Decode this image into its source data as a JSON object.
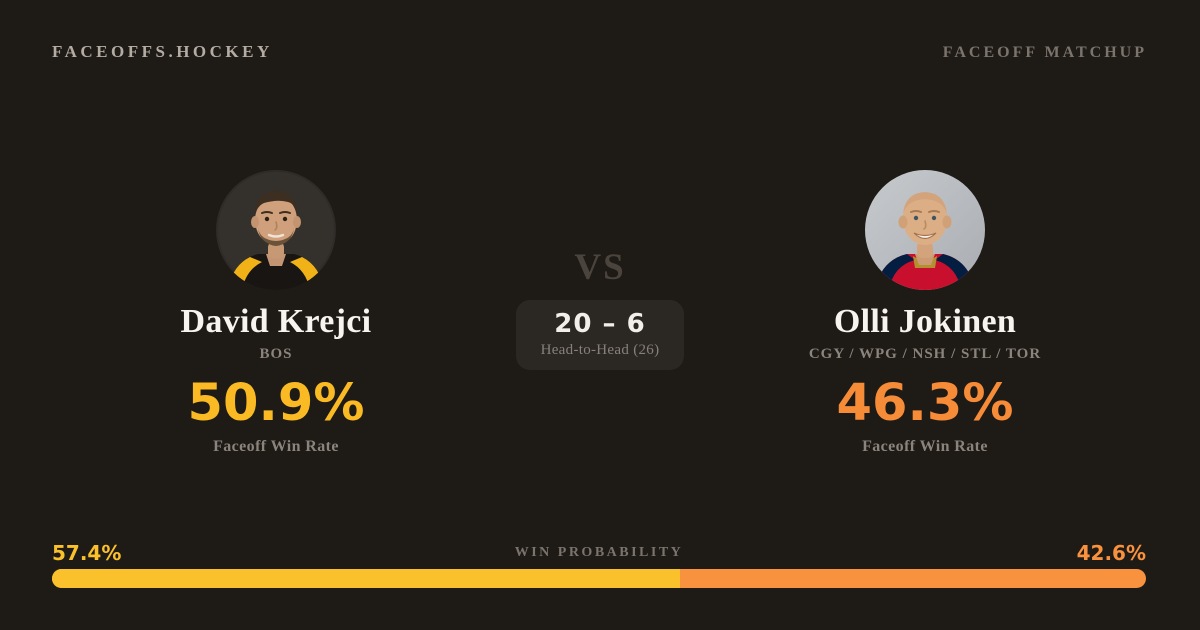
{
  "header": {
    "brand": "FACEOFFS.HOCKEY",
    "label": "FACEOFF MATCHUP"
  },
  "players": {
    "left": {
      "name": "David Krejci",
      "teams": "BOS",
      "win_rate": "50.9%",
      "win_rate_label": "Faceoff Win Rate",
      "accent_color": "#f9ba24",
      "avatar": "david-krejci-portrait-photo"
    },
    "right": {
      "name": "Olli Jokinen",
      "teams": "CGY / WPG / NSH / STL / TOR",
      "win_rate": "46.3%",
      "win_rate_label": "Faceoff Win Rate",
      "accent_color": "#f68b38",
      "avatar": "olli-jokinen-portrait-photo"
    }
  },
  "center": {
    "vs": "VS",
    "score": "20 – 6",
    "label": "Head-to-Head (26)"
  },
  "probability": {
    "label": "WIN PROBABILITY",
    "left_value": "57.4%",
    "right_value": "42.6%",
    "left_pct": 57.4,
    "left_color": "#fbc12c",
    "right_color": "#f9923f"
  }
}
